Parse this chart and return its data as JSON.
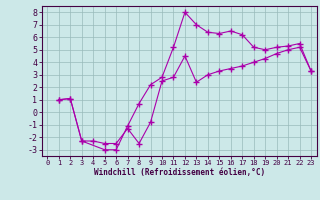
{
  "xlabel": "Windchill (Refroidissement éolien,°C)",
  "bg_color": "#cce8e8",
  "grid_color": "#99bbbb",
  "line_color": "#aa00aa",
  "spine_color": "#440044",
  "tick_color": "#440044",
  "xlim": [
    -0.5,
    23.5
  ],
  "ylim": [
    -3.5,
    8.5
  ],
  "xticks": [
    0,
    1,
    2,
    3,
    4,
    5,
    6,
    7,
    8,
    9,
    10,
    11,
    12,
    13,
    14,
    15,
    16,
    17,
    18,
    19,
    20,
    21,
    22,
    23
  ],
  "yticks": [
    -3,
    -2,
    -1,
    0,
    1,
    2,
    3,
    4,
    5,
    6,
    7,
    8
  ],
  "series1_x": [
    1,
    2,
    3,
    5,
    6,
    7,
    8,
    9,
    10,
    11,
    12,
    13,
    14,
    15,
    16,
    17,
    18,
    19,
    20,
    21,
    22,
    23
  ],
  "series1_y": [
    1.0,
    1.1,
    -2.3,
    -3.0,
    -3.0,
    -1.1,
    0.7,
    2.2,
    2.8,
    5.2,
    8.0,
    7.0,
    6.4,
    6.3,
    6.5,
    6.2,
    5.2,
    5.0,
    5.2,
    5.3,
    5.5,
    3.3
  ],
  "series2_x": [
    1,
    2,
    3,
    4,
    5,
    6,
    7,
    8,
    9,
    10,
    11,
    12,
    13,
    14,
    15,
    16,
    17,
    18,
    19,
    20,
    21,
    22,
    23
  ],
  "series2_y": [
    1.0,
    1.1,
    -2.3,
    -2.3,
    -2.5,
    -2.5,
    -1.3,
    -2.5,
    -0.8,
    2.5,
    2.8,
    4.5,
    2.4,
    3.0,
    3.3,
    3.5,
    3.7,
    4.0,
    4.3,
    4.7,
    5.0,
    5.2,
    3.3
  ]
}
